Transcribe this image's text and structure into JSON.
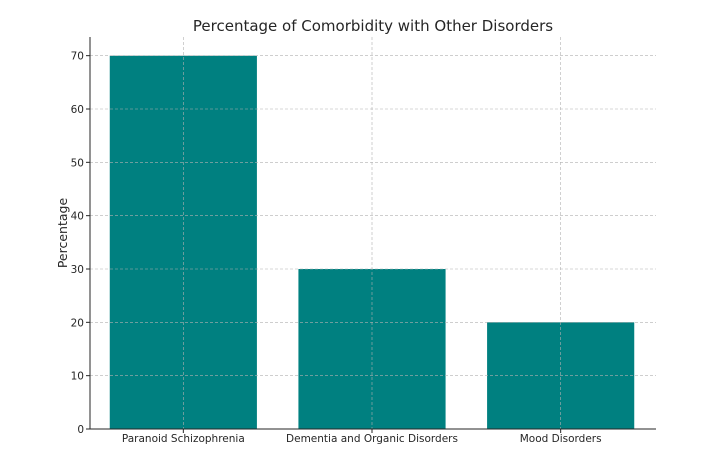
{
  "chart_data": {
    "type": "bar",
    "title": "Percentage of Comorbidity with Other Disorders",
    "xlabel": "",
    "ylabel": "Percentage",
    "categories": [
      "Paranoid Schizophrenia",
      "Dementia and Organic Disorders",
      "Mood Disorders"
    ],
    "values": [
      70,
      30,
      20
    ],
    "ylim": [
      0,
      73.5
    ],
    "yticks": [
      0,
      10,
      20,
      30,
      40,
      50,
      60,
      70
    ],
    "grid": true,
    "bar_color": "#008080"
  }
}
